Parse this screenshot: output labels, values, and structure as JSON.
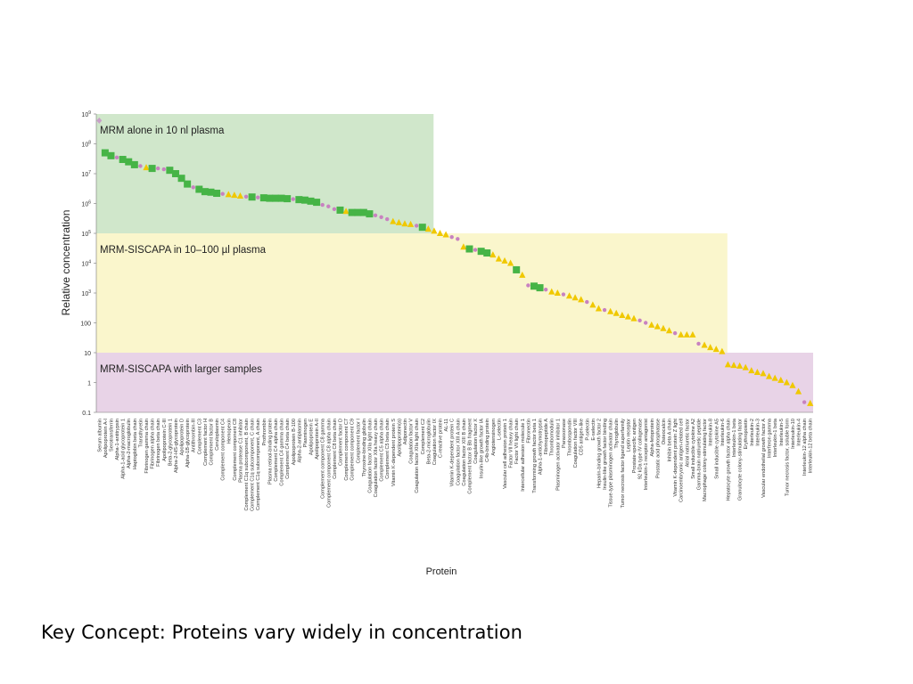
{
  "caption": "Key Concept: Proteins vary widely in concentration",
  "chart_data": {
    "type": "scatter",
    "title": "",
    "xlabel": "Protein",
    "ylabel": "Relative concentration",
    "y_scale": "log",
    "ylim": [
      0.1,
      1000000000
    ],
    "yticks": [
      {
        "value": 1000000000,
        "base": "10",
        "exp": "9"
      },
      {
        "value": 100000000,
        "base": "10",
        "exp": "8"
      },
      {
        "value": 10000000,
        "base": "10",
        "exp": "7"
      },
      {
        "value": 1000000,
        "base": "10",
        "exp": "6"
      },
      {
        "value": 100000,
        "base": "10",
        "exp": "5"
      },
      {
        "value": 10000,
        "base": "10",
        "exp": "4"
      },
      {
        "value": 1000,
        "base": "10",
        "exp": "3"
      },
      {
        "value": 100,
        "base": "100",
        "exp": ""
      },
      {
        "value": 10,
        "base": "10",
        "exp": ""
      },
      {
        "value": 1,
        "base": "1",
        "exp": ""
      },
      {
        "value": 0.1,
        "base": "0.1",
        "exp": ""
      }
    ],
    "regions": [
      {
        "label": "MRM alone in 10 nl plasma",
        "color": "#d0e7cb",
        "y_low": 100000,
        "y_high": 1000000000,
        "x_to": "Beta-2-microglobulin"
      },
      {
        "label": "MRM-SISCAPA in 10–100 µl plasma",
        "color": "#faf6cc",
        "y_low": 10,
        "y_high": 100000,
        "x_to": "Interleukin-6"
      },
      {
        "label": "MRM-SISCAPA with larger samples",
        "color": "#e8d3e7",
        "y_low": 0.1,
        "y_high": 10,
        "x_to": "Interleukin-12 beta chain"
      }
    ],
    "legend_note": "",
    "marker_colors": {
      "square": "#46b446",
      "dot": "#c882c0",
      "triangle": "#f0c800",
      "diamond": "#c8a0c8"
    },
    "proteins": [
      {
        "name": "Serum albumin",
        "value": 600000000,
        "marker": "diamond"
      },
      {
        "name": "Apolipoprotein A-I",
        "value": 50000000,
        "marker": "square"
      },
      {
        "name": "Serotransferrin",
        "value": 40000000,
        "marker": "square"
      },
      {
        "name": "Alpha-1-antitrypsin",
        "value": 35000000,
        "marker": "dot"
      },
      {
        "name": "Alpha-1-acid glycoprotein 1",
        "value": 30000000,
        "marker": "square"
      },
      {
        "name": "Alpha-2-macroglobulin",
        "value": 25000000,
        "marker": "square"
      },
      {
        "name": "Haptoglobin beta chain",
        "value": 20000000,
        "marker": "square"
      },
      {
        "name": "Transthyretin",
        "value": 18000000,
        "marker": "dot"
      },
      {
        "name": "Fibrinogen gamma chain",
        "value": 16000000,
        "marker": "triangle"
      },
      {
        "name": "Fibrinogen alpha chain",
        "value": 15000000,
        "marker": "square"
      },
      {
        "name": "Fibrinogen beta chain",
        "value": 15000000,
        "marker": "dot"
      },
      {
        "name": "Apolipoprotein C-III",
        "value": 14000000,
        "marker": "dot"
      },
      {
        "name": "Beta-2-glycoprotein 1",
        "value": 13000000,
        "marker": "square"
      },
      {
        "name": "Alpha-2-HS-glycoprotein",
        "value": 10000000,
        "marker": "square"
      },
      {
        "name": "Apolipoprotein D",
        "value": 7000000,
        "marker": "square"
      },
      {
        "name": "Alpha-1B-glycoprotein",
        "value": 4500000,
        "marker": "square"
      },
      {
        "name": "Antithrombin-III",
        "value": 3500000,
        "marker": "dot"
      },
      {
        "name": "Complement C3",
        "value": 3000000,
        "marker": "square"
      },
      {
        "name": "Complement factor H",
        "value": 2500000,
        "marker": "square"
      },
      {
        "name": "Complement factor B",
        "value": 2400000,
        "marker": "square"
      },
      {
        "name": "Ceruloplasmin",
        "value": 2200000,
        "marker": "square"
      },
      {
        "name": "Complement component C4",
        "value": 2100000,
        "marker": "dot"
      },
      {
        "name": "Hemopexin",
        "value": 2000000,
        "marker": "triangle"
      },
      {
        "name": "Complement component C8",
        "value": 1900000,
        "marker": "triangle"
      },
      {
        "name": "Plasma protease C1 inhibitor",
        "value": 1800000,
        "marker": "triangle"
      },
      {
        "name": "Complement C1q subcomponent, B chain",
        "value": 1700000,
        "marker": "dot"
      },
      {
        "name": "Complement C1q subcomponent, C chain",
        "value": 1650000,
        "marker": "square"
      },
      {
        "name": "Complement C1q subcomponent, A chain",
        "value": 1600000,
        "marker": "dot"
      },
      {
        "name": "Prothrombin",
        "value": 1550000,
        "marker": "square"
      },
      {
        "name": "Plasma retinol-binding protein",
        "value": 1500000,
        "marker": "square"
      },
      {
        "name": "Complement C4 alpha chain",
        "value": 1500000,
        "marker": "square"
      },
      {
        "name": "Complement C4 gamma chain",
        "value": 1500000,
        "marker": "square"
      },
      {
        "name": "Complement C4 beta chain",
        "value": 1450000,
        "marker": "square"
      },
      {
        "name": "Apolipoprotein B-100",
        "value": 1400000,
        "marker": "dot"
      },
      {
        "name": "Alpha-2-antiplasmin",
        "value": 1350000,
        "marker": "square"
      },
      {
        "name": "Plasminogen",
        "value": 1300000,
        "marker": "square"
      },
      {
        "name": "Apolipoprotein E",
        "value": 1200000,
        "marker": "square"
      },
      {
        "name": "Apolipoprotein A-II",
        "value": 1100000,
        "marker": "square"
      },
      {
        "name": "Complement component C8 gamma",
        "value": 900000,
        "marker": "dot"
      },
      {
        "name": "Complement component C8 alpha chain",
        "value": 800000,
        "marker": "dot"
      },
      {
        "name": "Complement C8 beta chain",
        "value": 650000,
        "marker": "dot"
      },
      {
        "name": "Complement factor D",
        "value": 600000,
        "marker": "square"
      },
      {
        "name": "Complement component C7",
        "value": 550000,
        "marker": "triangle"
      },
      {
        "name": "Complement component C9",
        "value": 500000,
        "marker": "square"
      },
      {
        "name": "Complement factor I",
        "value": 500000,
        "marker": "square"
      },
      {
        "name": "Thyroxine-binding globulin",
        "value": 500000,
        "marker": "square"
      },
      {
        "name": "Coagulation factor XIIa light chain",
        "value": 450000,
        "marker": "square"
      },
      {
        "name": "Coagulation factor XIIa heavy chain",
        "value": 400000,
        "marker": "dot"
      },
      {
        "name": "Complement C5 alpha chain",
        "value": 350000,
        "marker": "dot"
      },
      {
        "name": "Complement C5 beta chain",
        "value": 300000,
        "marker": "dot"
      },
      {
        "name": "Vitamin K-dependent protein S",
        "value": 250000,
        "marker": "triangle"
      },
      {
        "name": "Apolipoprotein(a)",
        "value": 230000,
        "marker": "triangle"
      },
      {
        "name": "Adiponectin",
        "value": 210000,
        "marker": "triangle"
      },
      {
        "name": "Coagulation factor V",
        "value": 200000,
        "marker": "triangle"
      },
      {
        "name": "Coagulation factor XIIa light chain",
        "value": 180000,
        "marker": "dot"
      },
      {
        "name": "Complement C2",
        "value": 160000,
        "marker": "square"
      },
      {
        "name": "Beta-2-microglobulin",
        "value": 140000,
        "marker": "triangle"
      },
      {
        "name": "Coagulation factor IX",
        "value": 120000,
        "marker": "triangle"
      },
      {
        "name": "C-reactive protein",
        "value": 100000,
        "marker": "triangle"
      },
      {
        "name": "AL-11",
        "value": 90000,
        "marker": "triangle"
      },
      {
        "name": "Vitamin K-dependent protein C",
        "value": 75000,
        "marker": "dot"
      },
      {
        "name": "Coagulation factor XIII A chain",
        "value": 65000,
        "marker": "dot"
      },
      {
        "name": "Coagulation factor XIII B chain",
        "value": 35000,
        "marker": "triangle"
      },
      {
        "name": "Complement factor B Bb fragment",
        "value": 30000,
        "marker": "square"
      },
      {
        "name": "Coagulation factor X",
        "value": 28000,
        "marker": "dot"
      },
      {
        "name": "Insulin-like growth factor IA",
        "value": 25000,
        "marker": "square"
      },
      {
        "name": "C4b-binding protein",
        "value": 22000,
        "marker": "square"
      },
      {
        "name": "Angiotensinogen",
        "value": 19000,
        "marker": "triangle"
      },
      {
        "name": "L-selectin",
        "value": 14000,
        "marker": "triangle"
      },
      {
        "name": "Vascular cell adhesion protein 1",
        "value": 12000,
        "marker": "triangle"
      },
      {
        "name": "Factor VII heavy chain",
        "value": 10000,
        "marker": "triangle"
      },
      {
        "name": "Factor VII light chain",
        "value": 6000,
        "marker": "square"
      },
      {
        "name": "Intercellular adhesion molecule 1",
        "value": 4000,
        "marker": "triangle"
      },
      {
        "name": "Fibronectin",
        "value": 1800,
        "marker": "dot"
      },
      {
        "name": "Transforming growth factor beta 1",
        "value": 1700,
        "marker": "square"
      },
      {
        "name": "Alpha-1-antichymotrypsin",
        "value": 1500,
        "marker": "square"
      },
      {
        "name": "Fibrinopeptide A",
        "value": 1300,
        "marker": "dot"
      },
      {
        "name": "Thrombomodulin",
        "value": 1100,
        "marker": "triangle"
      },
      {
        "name": "Plasminogen activator inhibitor 1",
        "value": 1000,
        "marker": "triangle"
      },
      {
        "name": "Paraoxonase",
        "value": 900,
        "marker": "dot"
      },
      {
        "name": "Thrombospondin",
        "value": 800,
        "marker": "triangle"
      },
      {
        "name": "Coagulation factor VIII",
        "value": 700,
        "marker": "triangle"
      },
      {
        "name": "CD5 antigen-like",
        "value": 600,
        "marker": "triangle"
      },
      {
        "name": "P-selectin",
        "value": 500,
        "marker": "dot"
      },
      {
        "name": "E-selectin",
        "value": 400,
        "marker": "triangle"
      },
      {
        "name": "Heparin-binding growth factor 2",
        "value": 300,
        "marker": "triangle"
      },
      {
        "name": "Insulin-like growth factor binding",
        "value": 270,
        "marker": "dot"
      },
      {
        "name": "Tissue-type plasminogen activator chain",
        "value": 240,
        "marker": "triangle"
      },
      {
        "name": "Thyroglobulin",
        "value": 210,
        "marker": "triangle"
      },
      {
        "name": "Tumor necrosis factor ligand superfamily",
        "value": 180,
        "marker": "triangle"
      },
      {
        "name": "Leptin receptor",
        "value": 160,
        "marker": "triangle"
      },
      {
        "name": "Prostate-specific antigen",
        "value": 140,
        "marker": "triangle"
      },
      {
        "name": "92 kDa type IV collagenase",
        "value": 120,
        "marker": "dot"
      },
      {
        "name": "Interleukin-1 receptor antagonist",
        "value": 100,
        "marker": "dot"
      },
      {
        "name": "Alpha-fetoprotein",
        "value": 85,
        "marker": "triangle"
      },
      {
        "name": "Prostatic acid phosphatase",
        "value": 75,
        "marker": "triangle"
      },
      {
        "name": "Osteocalcin",
        "value": 65,
        "marker": "triangle"
      },
      {
        "name": "Inhibin beta A chain",
        "value": 55,
        "marker": "triangle"
      },
      {
        "name": "Vitamin K-dependent protein Z light",
        "value": 45,
        "marker": "dot"
      },
      {
        "name": "Carcinoembryonic antigen-related cell",
        "value": 40,
        "marker": "triangle"
      },
      {
        "name": "Atrial natriuretic factor",
        "value": 40,
        "marker": "triangle"
      },
      {
        "name": "Small inducible cytokine A2",
        "value": 40,
        "marker": "triangle"
      },
      {
        "name": "Gamma-brain natriuretic peptide",
        "value": 20,
        "marker": "dot"
      },
      {
        "name": "Macrophage colony-stimulating factor",
        "value": 18,
        "marker": "triangle"
      },
      {
        "name": "Interleukin-8",
        "value": 15,
        "marker": "triangle"
      },
      {
        "name": "Small inducible cytokine A5",
        "value": 13,
        "marker": "triangle"
      },
      {
        "name": "Interleukin-6",
        "value": 11,
        "marker": "triangle"
      },
      {
        "name": "Hepatocyte growth factor alpha chain",
        "value": 4,
        "marker": "triangle"
      },
      {
        "name": "Interleukin-1 beta",
        "value": 3.8,
        "marker": "triangle"
      },
      {
        "name": "Granulocyte colony-stimulating factor",
        "value": 3.6,
        "marker": "triangle"
      },
      {
        "name": "Erythropoietin",
        "value": 3.2,
        "marker": "triangle"
      },
      {
        "name": "Interleukin-2",
        "value": 2.5,
        "marker": "triangle"
      },
      {
        "name": "Interleukin-3",
        "value": 2.2,
        "marker": "triangle"
      },
      {
        "name": "Vascular endothelial growth factor A",
        "value": 2,
        "marker": "triangle"
      },
      {
        "name": "Interferon gamma",
        "value": 1.6,
        "marker": "triangle"
      },
      {
        "name": "Interleukin-1 beta",
        "value": 1.4,
        "marker": "triangle"
      },
      {
        "name": "Interleukin-5",
        "value": 1.2,
        "marker": "triangle"
      },
      {
        "name": "Tumor necrosis factor, soluble form",
        "value": 1,
        "marker": "triangle"
      },
      {
        "name": "Interleukin-10",
        "value": 0.8,
        "marker": "triangle"
      },
      {
        "name": "Interleukin-4",
        "value": 0.5,
        "marker": "triangle"
      },
      {
        "name": "Interleukin-12 alpha chain",
        "value": 0.22,
        "marker": "dot"
      },
      {
        "name": "Interleukin-12 beta chain",
        "value": 0.2,
        "marker": "triangle"
      }
    ]
  }
}
